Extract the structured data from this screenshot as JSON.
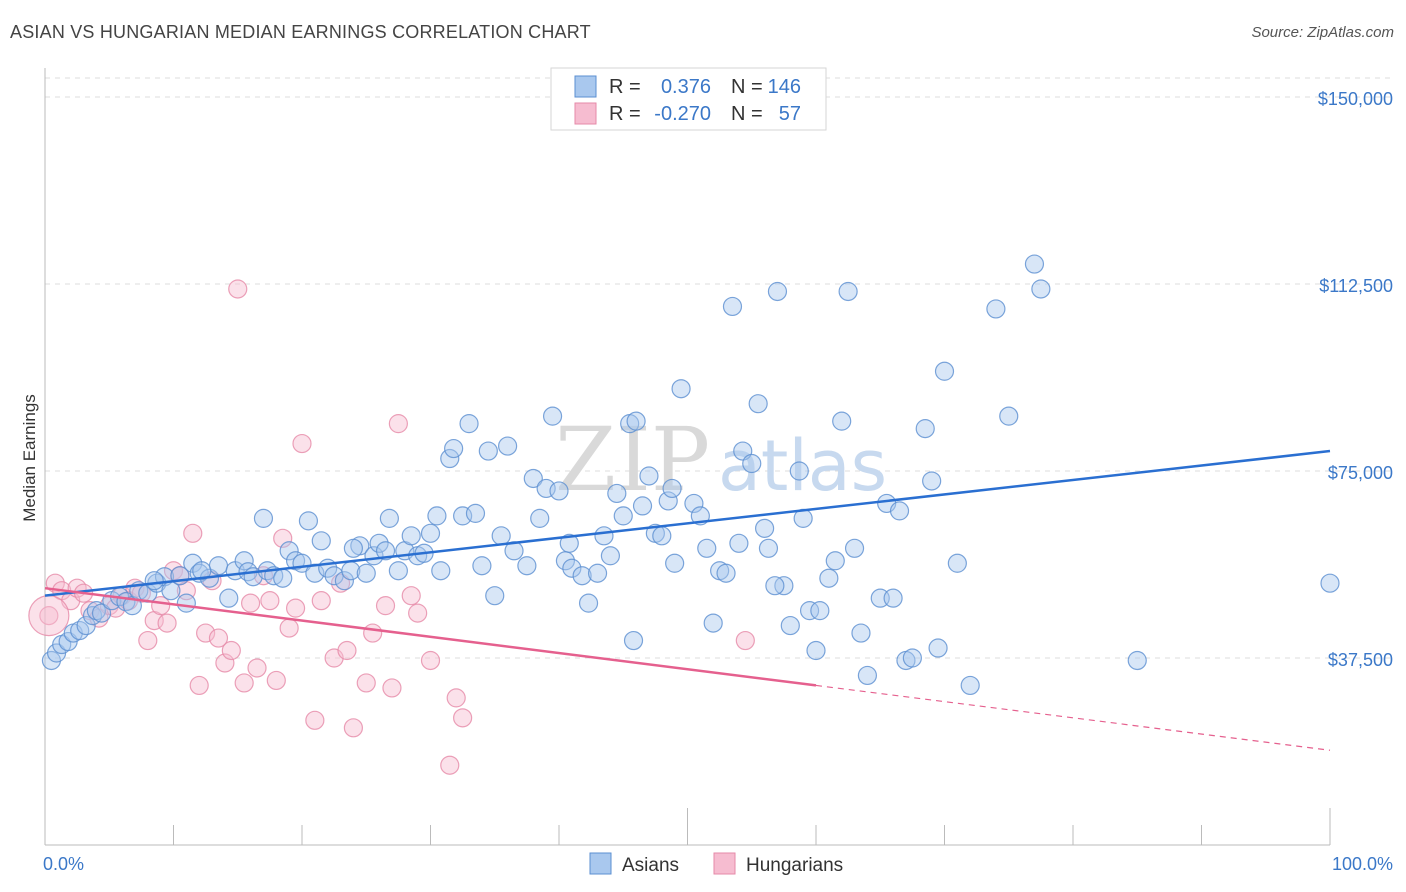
{
  "header": {
    "title": "ASIAN VS HUNGARIAN MEDIAN EARNINGS CORRELATION CHART",
    "source": "Source: ZipAtlas.com"
  },
  "watermark": {
    "zip": "ZIP",
    "atlas": "atlas"
  },
  "legend": {
    "rows": [
      {
        "r_label": "R =",
        "r_value": "0.376",
        "n_label": "N =",
        "n_value": "146"
      },
      {
        "r_label": "R =",
        "r_value": "-0.270",
        "n_label": "N =",
        "n_value": "57"
      }
    ]
  },
  "colors": {
    "asian_fill": "#a9c8ee",
    "asian_stroke": "#5b8fd1",
    "asian_line": "#2a6fd1",
    "hungarian_fill": "#f6bcd0",
    "hungarian_stroke": "#e68aa8",
    "hungarian_line": "#e5608e",
    "grid": "#dddddd",
    "axis_text": "#3b78c8"
  },
  "chart_data": {
    "type": "scatter",
    "ylabel": "Median Earnings",
    "xlabel_left": "0.0%",
    "xlabel_right": "100.0%",
    "xlim": [
      0,
      100
    ],
    "ylim": [
      0,
      155000
    ],
    "yticks": [
      {
        "value": 37500,
        "label": "$37,500"
      },
      {
        "value": 75000,
        "label": "$75,000"
      },
      {
        "value": 112500,
        "label": "$112,500"
      },
      {
        "value": 150000,
        "label": "$150,000"
      }
    ],
    "grid": "horizontal dashed",
    "legend_position": "top-center",
    "series": [
      {
        "name": "Asians",
        "color": "#a9c8ee",
        "r": 0.376,
        "n": 146,
        "trend": {
          "x": [
            0,
            100
          ],
          "y": [
            50000,
            79000
          ],
          "dashed_from": null
        },
        "points": [
          [
            0.5,
            37000
          ],
          [
            0.9,
            38500
          ],
          [
            1.3,
            40200
          ],
          [
            1.8,
            40800
          ],
          [
            2.2,
            42500
          ],
          [
            2.7,
            43000
          ],
          [
            3.2,
            44000
          ],
          [
            3.7,
            46000
          ],
          [
            4.0,
            47000
          ],
          [
            4.4,
            46500
          ],
          [
            5.2,
            49000
          ],
          [
            5.8,
            49800
          ],
          [
            6.3,
            48800
          ],
          [
            6.8,
            48000
          ],
          [
            7.3,
            51000
          ],
          [
            8.0,
            50500
          ],
          [
            8.7,
            52500
          ],
          [
            9.3,
            53800
          ],
          [
            9.8,
            51000
          ],
          [
            10.5,
            54000
          ],
          [
            11.0,
            48500
          ],
          [
            11.5,
            56500
          ],
          [
            12.0,
            54500
          ],
          [
            12.8,
            53500
          ],
          [
            13.5,
            56000
          ],
          [
            14.3,
            49500
          ],
          [
            14.8,
            55000
          ],
          [
            15.5,
            57000
          ],
          [
            15.8,
            54800
          ],
          [
            16.2,
            53800
          ],
          [
            17.0,
            65500
          ],
          [
            17.3,
            55000
          ],
          [
            17.8,
            54000
          ],
          [
            18.5,
            53500
          ],
          [
            19.0,
            59000
          ],
          [
            19.5,
            57000
          ],
          [
            20.0,
            56500
          ],
          [
            20.5,
            65000
          ],
          [
            21.0,
            54500
          ],
          [
            21.5,
            61000
          ],
          [
            22.0,
            55500
          ],
          [
            22.5,
            54000
          ],
          [
            23.3,
            53000
          ],
          [
            23.8,
            55000
          ],
          [
            24.5,
            60000
          ],
          [
            25.0,
            54500
          ],
          [
            25.6,
            58000
          ],
          [
            26.0,
            60500
          ],
          [
            26.5,
            59000
          ],
          [
            26.8,
            65500
          ],
          [
            27.5,
            55000
          ],
          [
            28.0,
            59000
          ],
          [
            28.5,
            62000
          ],
          [
            29.0,
            58000
          ],
          [
            29.5,
            58500
          ],
          [
            30.0,
            62500
          ],
          [
            30.5,
            66000
          ],
          [
            30.8,
            55000
          ],
          [
            31.5,
            77500
          ],
          [
            31.8,
            79500
          ],
          [
            32.5,
            66000
          ],
          [
            33.0,
            84500
          ],
          [
            33.5,
            66500
          ],
          [
            34.0,
            56000
          ],
          [
            34.5,
            79000
          ],
          [
            35.0,
            50000
          ],
          [
            35.5,
            62000
          ],
          [
            36.0,
            80000
          ],
          [
            36.5,
            59000
          ],
          [
            37.5,
            56000
          ],
          [
            38.0,
            73500
          ],
          [
            38.5,
            65500
          ],
          [
            39.0,
            71500
          ],
          [
            39.5,
            86000
          ],
          [
            40.0,
            71000
          ],
          [
            40.5,
            57000
          ],
          [
            41.0,
            55500
          ],
          [
            41.8,
            54000
          ],
          [
            42.3,
            48500
          ],
          [
            43.0,
            54500
          ],
          [
            43.5,
            62000
          ],
          [
            44.0,
            58000
          ],
          [
            44.5,
            70500
          ],
          [
            45.0,
            66000
          ],
          [
            45.5,
            84500
          ],
          [
            45.8,
            41000
          ],
          [
            46.0,
            85000
          ],
          [
            46.5,
            68000
          ],
          [
            47.0,
            74000
          ],
          [
            47.5,
            62500
          ],
          [
            48.0,
            62000
          ],
          [
            48.5,
            69000
          ],
          [
            48.8,
            71500
          ],
          [
            49.0,
            56500
          ],
          [
            49.5,
            91500
          ],
          [
            50.5,
            68500
          ],
          [
            51.0,
            66000
          ],
          [
            51.5,
            59500
          ],
          [
            52.0,
            44500
          ],
          [
            52.5,
            55000
          ],
          [
            53.0,
            54500
          ],
          [
            53.5,
            108000
          ],
          [
            54.0,
            60500
          ],
          [
            54.3,
            79000
          ],
          [
            55.0,
            76500
          ],
          [
            55.5,
            88500
          ],
          [
            56.0,
            63500
          ],
          [
            56.3,
            59500
          ],
          [
            57.0,
            111000
          ],
          [
            57.5,
            52000
          ],
          [
            58.0,
            44000
          ],
          [
            58.7,
            75000
          ],
          [
            59.0,
            65500
          ],
          [
            59.5,
            47000
          ],
          [
            60.0,
            39000
          ],
          [
            60.3,
            47000
          ],
          [
            61.0,
            53500
          ],
          [
            61.5,
            57000
          ],
          [
            62.0,
            85000
          ],
          [
            62.5,
            111000
          ],
          [
            63.0,
            59500
          ],
          [
            63.5,
            42500
          ],
          [
            64.0,
            34000
          ],
          [
            65.0,
            49500
          ],
          [
            65.5,
            68500
          ],
          [
            66.0,
            49500
          ],
          [
            66.5,
            67000
          ],
          [
            67.0,
            37000
          ],
          [
            67.5,
            37500
          ],
          [
            68.5,
            83500
          ],
          [
            69.0,
            73000
          ],
          [
            69.5,
            39500
          ],
          [
            70.0,
            95000
          ],
          [
            71.0,
            56500
          ],
          [
            72.0,
            32000
          ],
          [
            74.0,
            107500
          ],
          [
            75.0,
            86000
          ],
          [
            77.0,
            116500
          ],
          [
            77.5,
            111500
          ],
          [
            85.0,
            37000
          ],
          [
            100.0,
            52500
          ],
          [
            8.5,
            53000
          ],
          [
            12.2,
            55000
          ],
          [
            24.0,
            59500
          ],
          [
            40.8,
            60500
          ],
          [
            56.8,
            52000
          ]
        ]
      },
      {
        "name": "Hungarians",
        "color": "#f6bcd0",
        "r": -0.27,
        "n": 57,
        "trend": {
          "x": [
            0,
            100
          ],
          "y": [
            51500,
            19000
          ],
          "dashed_from": 60
        },
        "points": [
          [
            0.3,
            46000
          ],
          [
            0.8,
            52500
          ],
          [
            1.3,
            51000
          ],
          [
            2.0,
            49000
          ],
          [
            2.5,
            51500
          ],
          [
            3.0,
            50500
          ],
          [
            3.5,
            47000
          ],
          [
            4.2,
            45500
          ],
          [
            5.0,
            48000
          ],
          [
            5.5,
            47500
          ],
          [
            6.0,
            50000
          ],
          [
            6.5,
            49000
          ],
          [
            7.0,
            51500
          ],
          [
            7.5,
            50500
          ],
          [
            8.0,
            41000
          ],
          [
            8.5,
            45000
          ],
          [
            9.0,
            48000
          ],
          [
            9.5,
            44500
          ],
          [
            10.0,
            55000
          ],
          [
            10.5,
            54000
          ],
          [
            11.0,
            51000
          ],
          [
            11.5,
            62500
          ],
          [
            12.0,
            32000
          ],
          [
            12.5,
            42500
          ],
          [
            13.0,
            53000
          ],
          [
            13.5,
            41500
          ],
          [
            14.0,
            36500
          ],
          [
            14.5,
            39000
          ],
          [
            15.0,
            111500
          ],
          [
            15.5,
            32500
          ],
          [
            16.0,
            48500
          ],
          [
            16.5,
            35500
          ],
          [
            17.0,
            54000
          ],
          [
            17.5,
            49000
          ],
          [
            18.0,
            33000
          ],
          [
            18.5,
            61500
          ],
          [
            19.0,
            43500
          ],
          [
            19.5,
            47500
          ],
          [
            20.0,
            80500
          ],
          [
            21.0,
            25000
          ],
          [
            21.5,
            49000
          ],
          [
            22.5,
            37500
          ],
          [
            23.0,
            52500
          ],
          [
            23.5,
            39000
          ],
          [
            24.0,
            23500
          ],
          [
            25.0,
            32500
          ],
          [
            25.5,
            42500
          ],
          [
            26.5,
            48000
          ],
          [
            27.0,
            31500
          ],
          [
            27.5,
            84500
          ],
          [
            28.5,
            50000
          ],
          [
            29.0,
            46500
          ],
          [
            30.0,
            37000
          ],
          [
            31.5,
            16000
          ],
          [
            32.0,
            29500
          ],
          [
            32.5,
            25500
          ],
          [
            54.5,
            41000
          ]
        ]
      }
    ]
  },
  "bottom_legend": {
    "items": [
      "Asians",
      "Hungarians"
    ]
  }
}
